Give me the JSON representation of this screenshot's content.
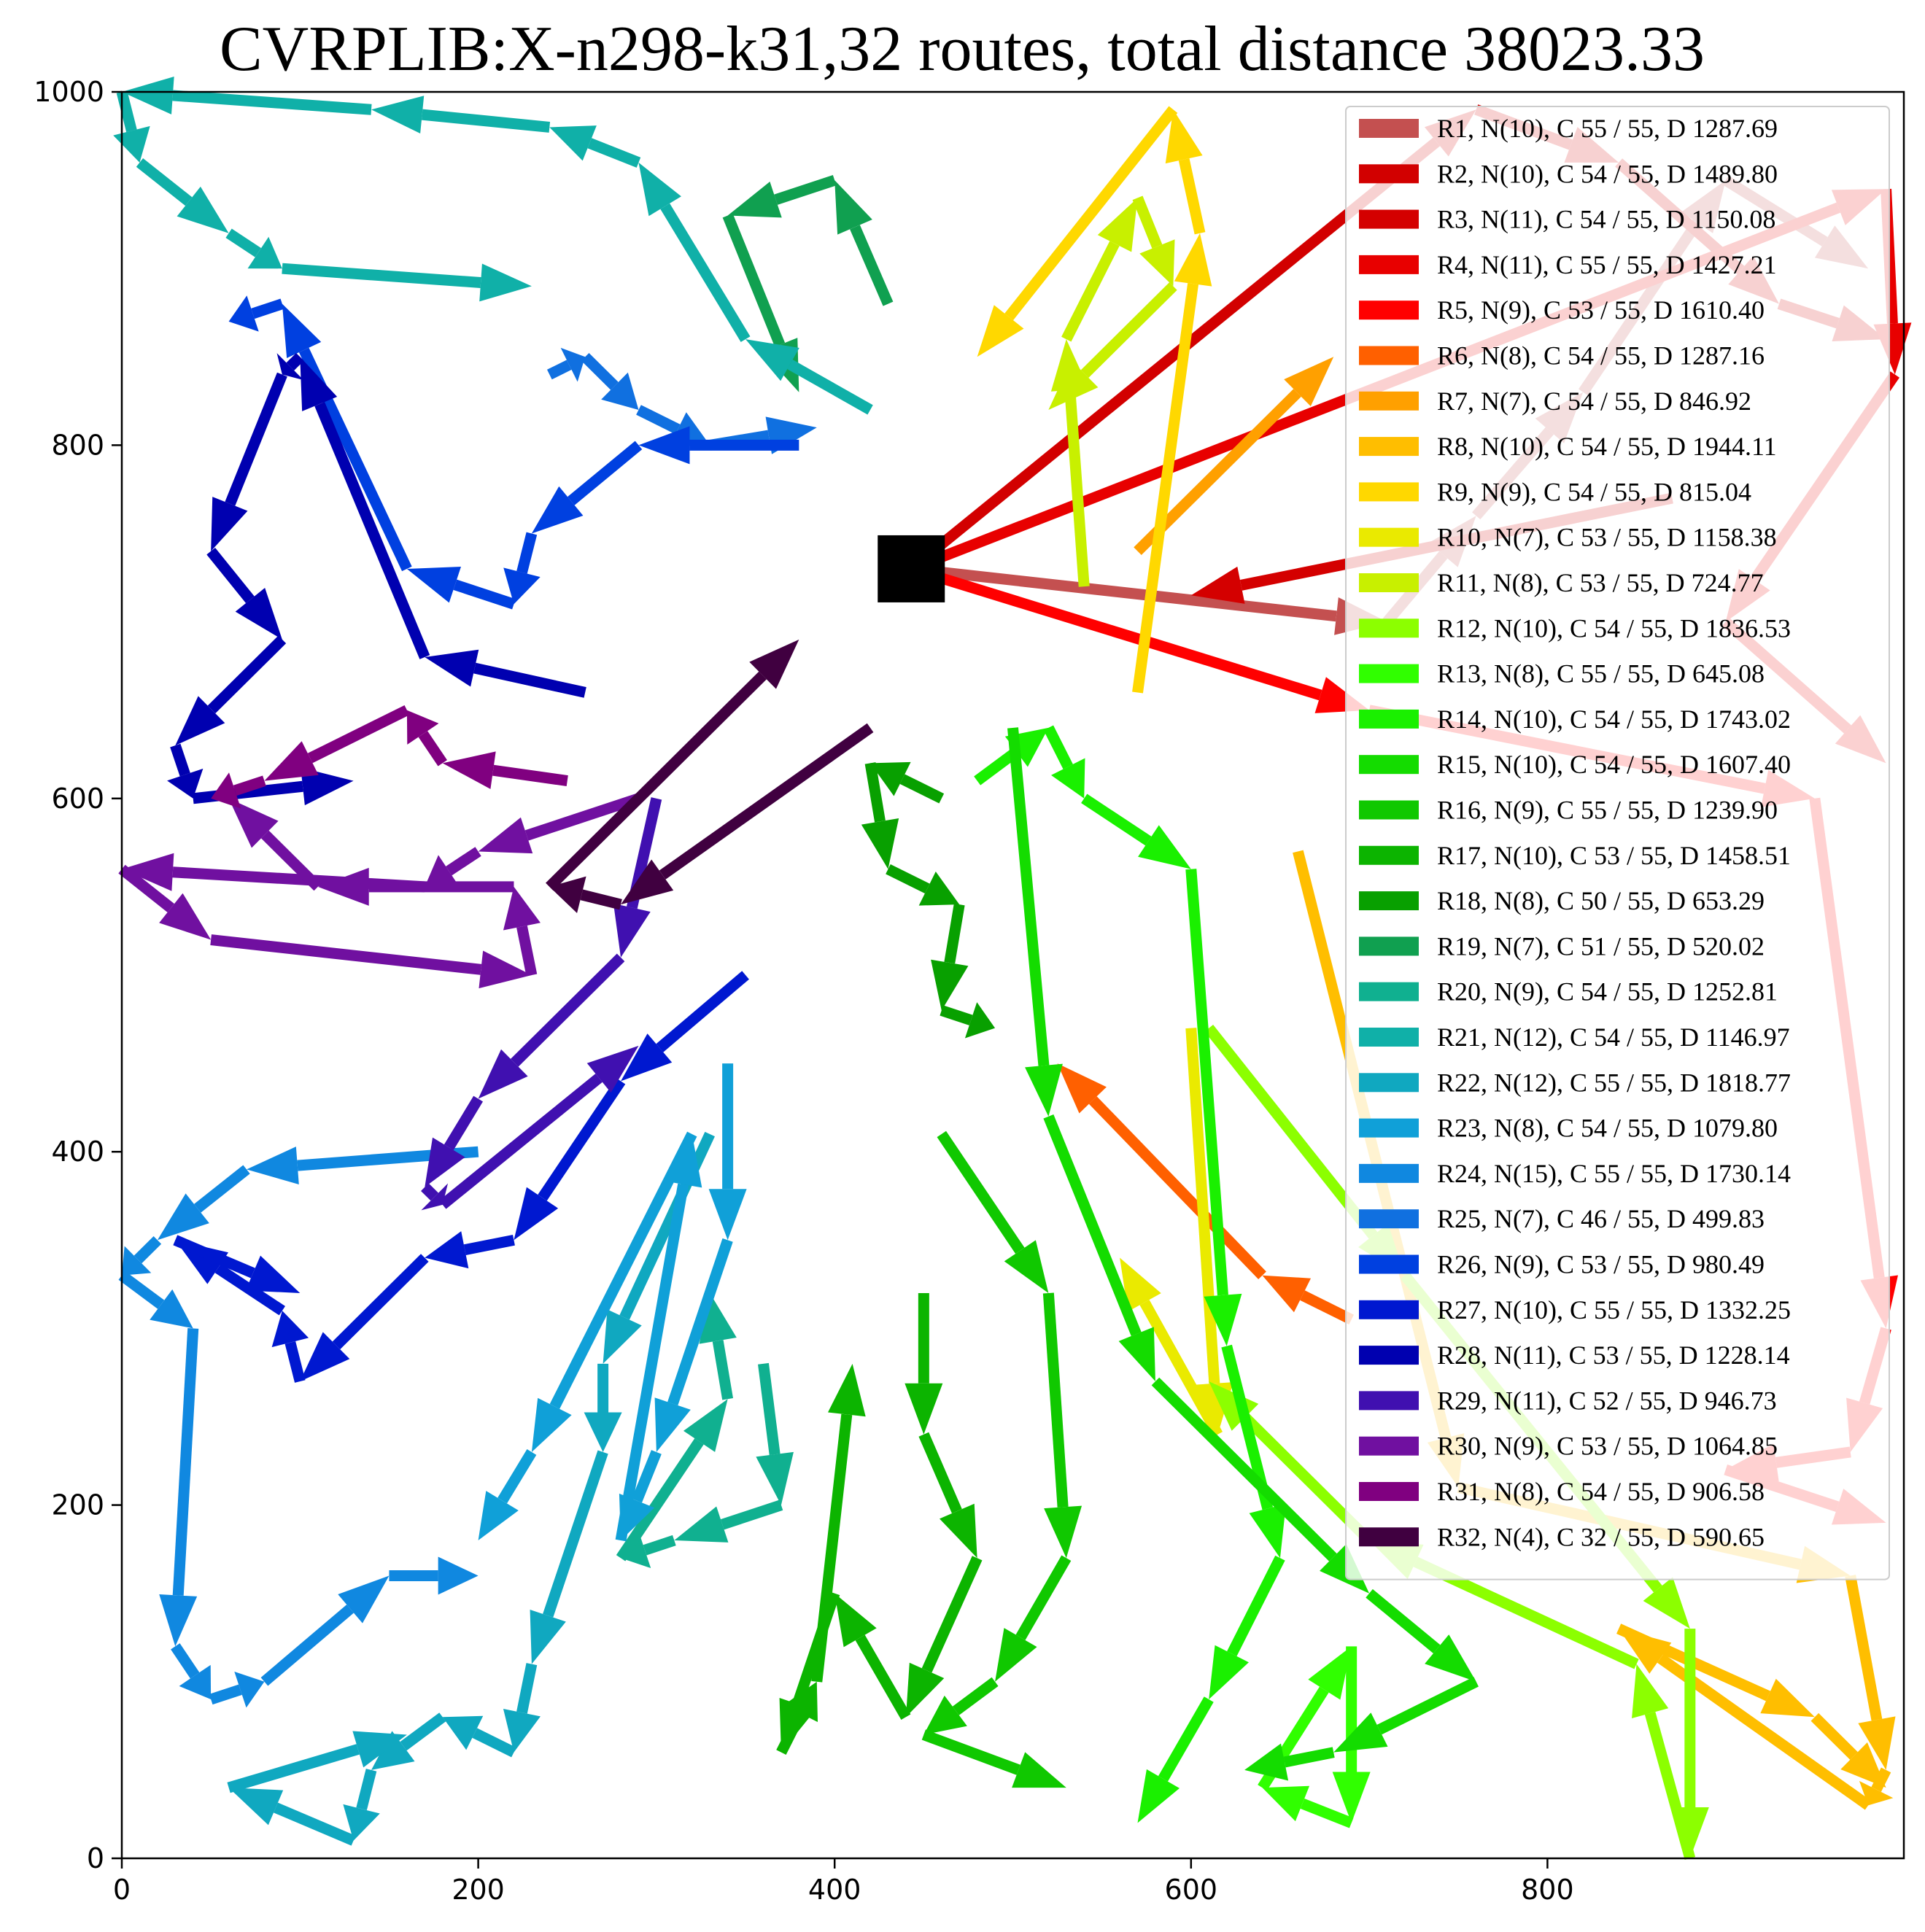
{
  "chart_data": {
    "type": "line",
    "title": "CVRPLIB:X-n298-k31,32 routes, total distance 38023.33",
    "xlabel": "",
    "ylabel": "",
    "xlim": [
      0,
      1000
    ],
    "ylim": [
      0,
      1000
    ],
    "x_ticks": [
      0,
      200,
      400,
      600,
      800
    ],
    "y_ticks": [
      0,
      200,
      400,
      600,
      800,
      1000
    ],
    "grid": false,
    "legend_position": "top-right",
    "depot": {
      "x": 443,
      "y": 730,
      "color": "#000000"
    },
    "series": [
      {
        "name": "R1, N(10), C 55 / 55, D 1287.69",
        "color": "#c45050",
        "points": [
          [
            443,
            730
          ],
          [
            710,
            700
          ],
          [
            760,
            760
          ],
          [
            820,
            830
          ],
          [
            900,
            950
          ],
          [
            980,
            900
          ]
        ]
      },
      {
        "name": "R2, N(10), C 54 / 55, D 1489.80",
        "color": "#d20000",
        "points": [
          [
            443,
            730
          ],
          [
            760,
            990
          ],
          [
            840,
            960
          ],
          [
            930,
            880
          ],
          [
            990,
            860
          ]
        ]
      },
      {
        "name": "R3, N(11), C 54 / 55, D 1150.08",
        "color": "#d40000",
        "points": [
          [
            870,
            770
          ],
          [
            600,
            715
          ]
        ]
      },
      {
        "name": "R4, N(11), C 55 / 55, D 1427.21",
        "color": "#e80000",
        "points": [
          [
            443,
            730
          ],
          [
            990,
            945
          ],
          [
            995,
            840
          ],
          [
            900,
            700
          ],
          [
            990,
            620
          ]
        ]
      },
      {
        "name": "R5, N(9), C 53 / 55, D 1610.40",
        "color": "#ff0000",
        "points": [
          [
            443,
            730
          ],
          [
            700,
            650
          ],
          [
            950,
            600
          ],
          [
            990,
            300
          ],
          [
            970,
            230
          ],
          [
            900,
            220
          ],
          [
            990,
            190
          ]
        ]
      },
      {
        "name": "R6, N(8), C 54 / 55, D 1287.16",
        "color": "#ff6000",
        "points": [
          [
            690,
            305
          ],
          [
            640,
            330
          ],
          [
            525,
            450
          ]
        ]
      },
      {
        "name": "R7, N(7), C 54 / 55, D 846.92",
        "color": "#ffa000",
        "points": [
          [
            570,
            740
          ],
          [
            680,
            850
          ]
        ]
      },
      {
        "name": "R8, N(10), C 54 / 55, D 1944.11",
        "color": "#ffbe00",
        "points": [
          [
            660,
            570
          ],
          [
            750,
            210
          ],
          [
            970,
            160
          ],
          [
            990,
            50
          ],
          [
            980,
            30
          ],
          [
            840,
            130
          ],
          [
            950,
            80
          ],
          [
            990,
            40
          ]
        ]
      },
      {
        "name": "R9, N(9), C 54 / 55, D 815.04",
        "color": "#ffd800",
        "points": [
          [
            570,
            660
          ],
          [
            605,
            920
          ],
          [
            590,
            990
          ],
          [
            480,
            850
          ]
        ]
      },
      {
        "name": "R10, N(7), C 53 / 55, D 1158.38",
        "color": "#eaea00",
        "points": [
          [
            600,
            470
          ],
          [
            615,
            240
          ],
          [
            560,
            340
          ]
        ]
      },
      {
        "name": "R11, N(8), C 53 / 55, D 724.77",
        "color": "#c8f000",
        "points": [
          [
            540,
            720
          ],
          [
            530,
            860
          ],
          [
            570,
            940
          ],
          [
            590,
            890
          ],
          [
            520,
            820
          ]
        ]
      },
      {
        "name": "R12, N(10), C 54 / 55, D 1836.53",
        "color": "#8cff00",
        "points": [
          [
            610,
            470
          ],
          [
            720,
            330
          ],
          [
            880,
            130
          ],
          [
            880,
            0
          ],
          [
            850,
            110
          ],
          [
            700,
            180
          ],
          [
            610,
            270
          ]
        ]
      },
      {
        "name": "R13, N(8), C 55 / 55, D 645.08",
        "color": "#30ff00",
        "points": [
          [
            690,
            120
          ],
          [
            690,
            20
          ],
          [
            640,
            40
          ],
          [
            690,
            120
          ]
        ]
      },
      {
        "name": "R14, N(10), C 54 / 55, D 1743.02",
        "color": "#1af000",
        "points": [
          [
            480,
            610
          ],
          [
            520,
            640
          ],
          [
            540,
            600
          ],
          [
            600,
            560
          ],
          [
            620,
            290
          ],
          [
            650,
            170
          ],
          [
            610,
            90
          ],
          [
            570,
            20
          ]
        ]
      },
      {
        "name": "R15, N(10), C 54 / 55, D 1607.40",
        "color": "#14dc00",
        "points": [
          [
            500,
            640
          ],
          [
            520,
            420
          ],
          [
            580,
            270
          ],
          [
            700,
            150
          ],
          [
            760,
            100
          ],
          [
            680,
            60
          ],
          [
            630,
            50
          ]
        ]
      },
      {
        "name": "R16, N(9), C 55 / 55, D 1239.90",
        "color": "#10c800",
        "points": [
          [
            460,
            410
          ],
          [
            520,
            320
          ],
          [
            530,
            170
          ],
          [
            490,
            100
          ],
          [
            450,
            70
          ],
          [
            530,
            40
          ]
        ]
      },
      {
        "name": "R17, N(10), C 53 / 55, D 1458.51",
        "color": "#0cb400",
        "points": [
          [
            450,
            320
          ],
          [
            450,
            240
          ],
          [
            480,
            170
          ],
          [
            440,
            80
          ],
          [
            400,
            150
          ],
          [
            370,
            60
          ],
          [
            390,
            100
          ],
          [
            410,
            280
          ]
        ]
      },
      {
        "name": "R18, N(8), C 50 / 55, D 653.29",
        "color": "#08a000",
        "points": [
          [
            460,
            600
          ],
          [
            420,
            620
          ],
          [
            430,
            560
          ],
          [
            470,
            540
          ],
          [
            460,
            480
          ],
          [
            490,
            470
          ]
        ]
      },
      {
        "name": "R19, N(7), C 51 / 55, D 520.02",
        "color": "#10a050",
        "points": [
          [
            430,
            880
          ],
          [
            400,
            950
          ],
          [
            340,
            930
          ],
          [
            380,
            830
          ]
        ]
      },
      {
        "name": "R20, N(9), C 54 / 55, D 1252.81",
        "color": "#10b090",
        "points": [
          [
            360,
            280
          ],
          [
            370,
            200
          ],
          [
            310,
            180
          ],
          [
            280,
            170
          ],
          [
            340,
            260
          ],
          [
            330,
            320
          ]
        ]
      },
      {
        "name": "R21, N(12), C 54 / 55, D 1146.97",
        "color": "#10b0a8",
        "points": [
          [
            420,
            820
          ],
          [
            350,
            860
          ],
          [
            290,
            960
          ],
          [
            240,
            980
          ],
          [
            140,
            990
          ],
          [
            0,
            1000
          ],
          [
            10,
            960
          ],
          [
            60,
            920
          ],
          [
            90,
            900
          ],
          [
            230,
            890
          ]
        ]
      },
      {
        "name": "R22, N(12), C 55 / 55, D 1818.77",
        "color": "#10a8c0",
        "points": [
          [
            330,
            410
          ],
          [
            270,
            280
          ],
          [
            270,
            230
          ],
          [
            230,
            110
          ],
          [
            220,
            60
          ],
          [
            180,
            80
          ],
          [
            140,
            50
          ],
          [
            130,
            10
          ],
          [
            60,
            40
          ],
          [
            160,
            70
          ]
        ]
      },
      {
        "name": "R23, N(8), C 54 / 55, D 1079.80",
        "color": "#10a0d8",
        "points": [
          [
            340,
            450
          ],
          [
            340,
            350
          ],
          [
            300,
            230
          ],
          [
            280,
            180
          ],
          [
            320,
            410
          ],
          [
            230,
            230
          ],
          [
            200,
            180
          ]
        ]
      },
      {
        "name": "R24, N(15), C 55 / 55, D 1730.14",
        "color": "#1088e0",
        "points": [
          [
            200,
            400
          ],
          [
            70,
            390
          ],
          [
            20,
            350
          ],
          [
            0,
            330
          ],
          [
            40,
            300
          ],
          [
            30,
            120
          ],
          [
            50,
            90
          ],
          [
            80,
            100
          ],
          [
            150,
            160
          ],
          [
            200,
            160
          ]
        ]
      },
      {
        "name": "R25, N(7), C 46 / 55, D 499.83",
        "color": "#1070e0",
        "points": [
          [
            240,
            840
          ],
          [
            260,
            850
          ],
          [
            290,
            820
          ],
          [
            330,
            800
          ],
          [
            390,
            810
          ]
        ]
      },
      {
        "name": "R26, N(9), C 53 / 55, D 980.49",
        "color": "#0040e0",
        "points": [
          [
            380,
            800
          ],
          [
            290,
            800
          ],
          [
            230,
            750
          ],
          [
            220,
            710
          ],
          [
            160,
            730
          ],
          [
            90,
            880
          ],
          [
            60,
            870
          ]
        ]
      },
      {
        "name": "R27, N(10), C 55 / 55, D 1332.25",
        "color": "#0018d0",
        "points": [
          [
            350,
            500
          ],
          [
            280,
            440
          ],
          [
            220,
            350
          ],
          [
            170,
            340
          ],
          [
            100,
            270
          ],
          [
            90,
            310
          ],
          [
            30,
            350
          ],
          [
            100,
            320
          ]
        ]
      },
      {
        "name": "R28, N(11), C 53 / 55, D 1228.14",
        "color": "#0000b0",
        "points": [
          [
            260,
            660
          ],
          [
            170,
            680
          ],
          [
            100,
            850
          ],
          [
            90,
            840
          ],
          [
            50,
            740
          ],
          [
            90,
            690
          ],
          [
            30,
            630
          ],
          [
            40,
            600
          ],
          [
            130,
            610
          ]
        ]
      },
      {
        "name": "R29, N(11), C 52 / 55, D 946.73",
        "color": "#4010b0",
        "points": [
          [
            300,
            600
          ],
          [
            280,
            510
          ],
          [
            200,
            430
          ],
          [
            170,
            380
          ],
          [
            180,
            370
          ],
          [
            290,
            460
          ]
        ]
      },
      {
        "name": "R30, N(9), C 53 / 55, D 1064.85",
        "color": "#7010a0",
        "points": [
          [
            290,
            600
          ],
          [
            200,
            570
          ],
          [
            170,
            550
          ],
          [
            0,
            560
          ],
          [
            50,
            520
          ],
          [
            230,
            500
          ],
          [
            220,
            550
          ],
          [
            110,
            550
          ],
          [
            60,
            600
          ]
        ]
      },
      {
        "name": "R31, N(8), C 54 / 55, D 906.58",
        "color": "#800080",
        "points": [
          [
            250,
            610
          ],
          [
            180,
            620
          ],
          [
            160,
            650
          ],
          [
            80,
            610
          ],
          [
            50,
            600
          ]
        ]
      },
      {
        "name": "R32, N(4), C 32 / 55, D 590.65",
        "color": "#400040",
        "points": [
          [
            420,
            640
          ],
          [
            280,
            540
          ],
          [
            240,
            550
          ],
          [
            380,
            690
          ]
        ]
      }
    ]
  }
}
